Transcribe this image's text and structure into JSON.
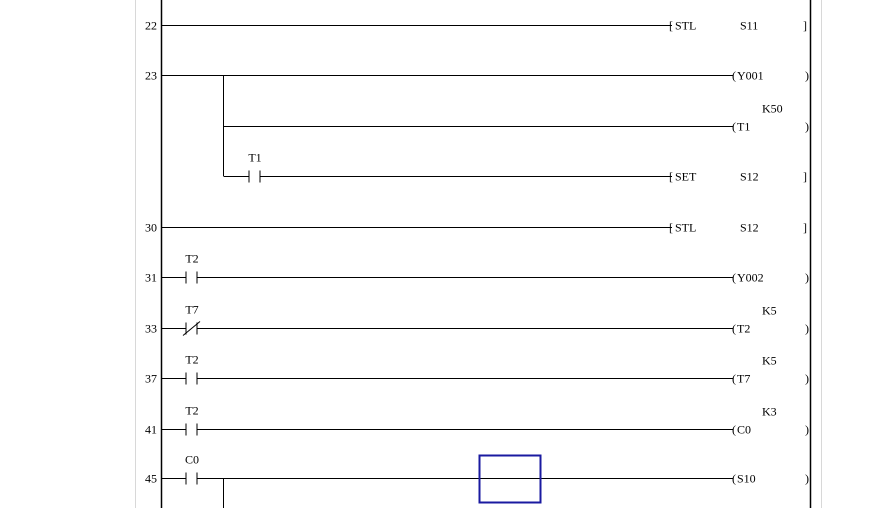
{
  "editor": {
    "cursor_color": "#1a1aa0",
    "rungs": [
      {
        "step": "22",
        "contacts": [],
        "output": {
          "kind": "instruction",
          "op": "STL",
          "operand": "S11"
        }
      },
      {
        "step": "23",
        "contacts": [],
        "output": {
          "kind": "coil",
          "device": "Y001"
        },
        "branches": [
          {
            "contacts": [],
            "output": {
              "kind": "coil",
              "device": "T1",
              "constant": "K50"
            }
          },
          {
            "contacts": [
              {
                "device": "T1",
                "type": "NO"
              }
            ],
            "output": {
              "kind": "instruction",
              "op": "SET",
              "operand": "S12"
            }
          }
        ]
      },
      {
        "step": "30",
        "contacts": [],
        "output": {
          "kind": "instruction",
          "op": "STL",
          "operand": "S12"
        }
      },
      {
        "step": "31",
        "contacts": [
          {
            "device": "T2",
            "type": "NO"
          }
        ],
        "output": {
          "kind": "coil",
          "device": "Y002"
        }
      },
      {
        "step": "33",
        "contacts": [
          {
            "device": "T7",
            "type": "NC"
          }
        ],
        "output": {
          "kind": "coil",
          "device": "T2",
          "constant": "K5"
        }
      },
      {
        "step": "37",
        "contacts": [
          {
            "device": "T2",
            "type": "NO"
          }
        ],
        "output": {
          "kind": "coil",
          "device": "T7",
          "constant": "K5"
        }
      },
      {
        "step": "41",
        "contacts": [
          {
            "device": "T2",
            "type": "NO"
          }
        ],
        "output": {
          "kind": "coil",
          "device": "C0",
          "constant": "K3"
        }
      },
      {
        "step": "45",
        "contacts": [
          {
            "device": "C0",
            "type": "NO"
          }
        ],
        "output": {
          "kind": "coil",
          "device": "S10"
        }
      }
    ]
  }
}
